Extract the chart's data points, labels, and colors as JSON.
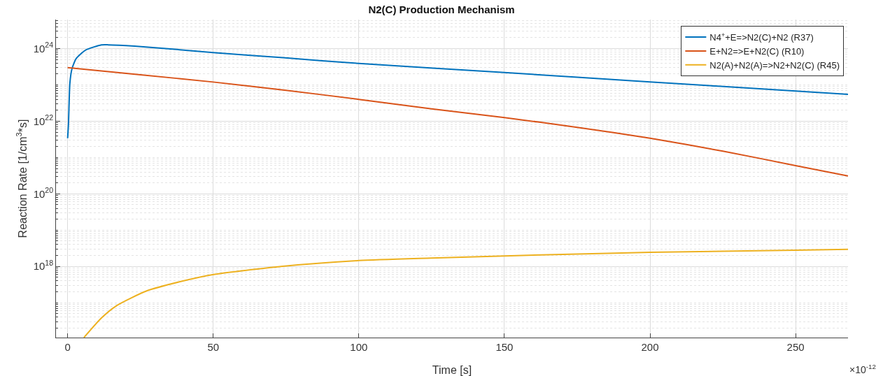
{
  "chart_data": {
    "type": "line",
    "title": "N2(C) Production Mechanism",
    "xlabel": "Time [s]",
    "ylabel": "Reaction Rate [1/cm$^{3}$*s]",
    "annotations": [
      "×10$^{-12}$"
    ],
    "log": true,
    "grid": true,
    "legend": "top right",
    "line_style": "solid",
    "marker": "none",
    "xlim": [
      -4,
      268
    ],
    "xticks": [
      0,
      50,
      100,
      150,
      200,
      250
    ],
    "ylim": [
      1.1e+16,
      6.3e+24
    ],
    "yticks": [
      {
        "value": 1e+18,
        "label": "10$^{18}$"
      },
      {
        "value": 1e+20,
        "label": "10$^{20}$"
      },
      {
        "value": 1e+22,
        "label": "10$^{22}$"
      },
      {
        "value": 1e+24,
        "label": "10$^{24}$"
      }
    ],
    "series": [
      {
        "name": "N4$^{+}$+E=>N2(C)+N2 (R37)",
        "color": "#0072bd",
        "x": [
          0,
          0.3,
          0.77,
          1.5,
          3.0,
          6.2,
          11.6,
          14,
          23,
          50,
          74,
          100,
          150,
          200,
          250,
          268
        ],
        "values": [
          3.4e+21,
          8.7e+21,
          1.1e+23,
          2.8e+23,
          5.4e+23,
          9.1e+23,
          1.26e+24,
          1.27e+24,
          1.17e+24,
          7.8e+23,
          5.6e+23,
          3.9e+23,
          2.2e+23,
          1.2e+23,
          6.8e+22,
          5.5e+22
        ]
      },
      {
        "name": "E+N2=>E+N2(C) (R10)",
        "color": "#d95319",
        "x": [
          0,
          25,
          50,
          75,
          100,
          125,
          150,
          175,
          200,
          225,
          250,
          268
        ],
        "values": [
          3e+23,
          1.9e+23,
          1.2e+23,
          7.1e+22,
          4e+22,
          2.2e+22,
          1.26e+22,
          6.8e+21,
          3.4e+21,
          1.5e+21,
          6e+20,
          3.1e+20
        ]
      },
      {
        "name": "N2(A)+N2(A)=>N2+N2(C) (R45)",
        "color": "#edb120",
        "x": [
          5.6,
          11.6,
          17,
          27,
          38.6,
          50.2,
          73.3,
          100,
          125,
          150,
          175,
          200,
          250,
          268
        ],
        "values": [
          1.1e+16,
          3.8e+16,
          8.5e+16,
          2.1e+17,
          3.8e+17,
          6e+17,
          1e+18,
          1.45e+18,
          1.7e+18,
          1.95e+18,
          2.2e+18,
          2.45e+18,
          2.8e+18,
          2.95e+18
        ]
      }
    ]
  }
}
